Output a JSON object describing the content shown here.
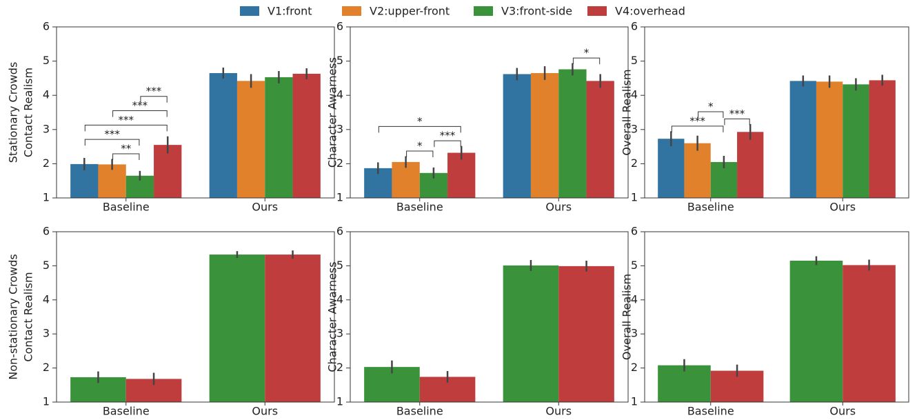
{
  "chart_data": [
    {
      "type": "bar",
      "ylabel": [
        "Stationary Crowds",
        "Contact Realism"
      ],
      "categories": [
        "Baseline",
        "Ours"
      ],
      "ylim": [
        1,
        6
      ],
      "yticks": [
        1,
        2,
        3,
        4,
        5,
        6
      ],
      "series": [
        {
          "name": "V1:front",
          "color": "#3274a1",
          "values": [
            1.99,
            4.65
          ],
          "errors": [
            0.18,
            0.16
          ]
        },
        {
          "name": "V2:upper-front",
          "color": "#e1812c",
          "values": [
            1.98,
            4.42
          ],
          "errors": [
            0.16,
            0.2
          ]
        },
        {
          "name": "V3:front-side",
          "color": "#3a923a",
          "values": [
            1.65,
            4.53
          ],
          "errors": [
            0.14,
            0.18
          ]
        },
        {
          "name": "V4:overhead",
          "color": "#c03d3e",
          "values": [
            2.55,
            4.63
          ],
          "errors": [
            0.25,
            0.16
          ]
        }
      ],
      "annotations": [
        {
          "category": 0,
          "from": 1,
          "to": 2,
          "label": "**"
        },
        {
          "category": 0,
          "from": 0,
          "to": 2,
          "label": "***"
        },
        {
          "category": 0,
          "from": 0,
          "to": 3,
          "label": "***"
        },
        {
          "category": 0,
          "from": 1,
          "to": 3,
          "label": "***"
        },
        {
          "category": 0,
          "from": 2,
          "to": 3,
          "label": "***"
        }
      ]
    },
    {
      "type": "bar",
      "ylabel": [
        "Character Awarness"
      ],
      "categories": [
        "Baseline",
        "Ours"
      ],
      "ylim": [
        1,
        6
      ],
      "yticks": [
        1,
        2,
        3,
        4,
        5,
        6
      ],
      "series": [
        {
          "name": "V1:front",
          "color": "#3274a1",
          "values": [
            1.87,
            4.62
          ],
          "errors": [
            0.17,
            0.18
          ]
        },
        {
          "name": "V2:upper-front",
          "color": "#e1812c",
          "values": [
            2.05,
            4.65
          ],
          "errors": [
            0.17,
            0.2
          ]
        },
        {
          "name": "V3:front-side",
          "color": "#3a923a",
          "values": [
            1.73,
            4.76
          ],
          "errors": [
            0.16,
            0.18
          ]
        },
        {
          "name": "V4:overhead",
          "color": "#c03d3e",
          "values": [
            2.32,
            4.42
          ],
          "errors": [
            0.2,
            0.2
          ]
        }
      ],
      "annotations": [
        {
          "category": 0,
          "from": 1,
          "to": 2,
          "label": "*"
        },
        {
          "category": 0,
          "from": 2,
          "to": 3,
          "label": "***"
        },
        {
          "category": 0,
          "from": 0,
          "to": 3,
          "label": "*"
        },
        {
          "category": 1,
          "from": 2,
          "to": 3,
          "label": "*"
        }
      ]
    },
    {
      "type": "bar",
      "ylabel": [
        "Overall Realism"
      ],
      "categories": [
        "Baseline",
        "Ours"
      ],
      "ylim": [
        1,
        6
      ],
      "yticks": [
        1,
        2,
        3,
        4,
        5,
        6
      ],
      "series": [
        {
          "name": "V1:front",
          "color": "#3274a1",
          "values": [
            2.73,
            4.42
          ],
          "errors": [
            0.22,
            0.16
          ]
        },
        {
          "name": "V2:upper-front",
          "color": "#e1812c",
          "values": [
            2.6,
            4.4
          ],
          "errors": [
            0.22,
            0.18
          ]
        },
        {
          "name": "V3:front-side",
          "color": "#3a923a",
          "values": [
            2.05,
            4.32
          ],
          "errors": [
            0.18,
            0.18
          ]
        },
        {
          "name": "V4:overhead",
          "color": "#c03d3e",
          "values": [
            2.93,
            4.44
          ],
          "errors": [
            0.23,
            0.16
          ]
        }
      ],
      "annotations": [
        {
          "category": 0,
          "from": 0,
          "to": 2,
          "label": "***"
        },
        {
          "category": 0,
          "from": 1,
          "to": 2,
          "label": "*"
        },
        {
          "category": 0,
          "from": 2,
          "to": 3,
          "label": "***"
        }
      ]
    },
    {
      "type": "bar",
      "ylabel": [
        "Non-stationary Crowds",
        "Contact Realism"
      ],
      "categories": [
        "Baseline",
        "Ours"
      ],
      "ylim": [
        1,
        6
      ],
      "yticks": [
        1,
        2,
        3,
        4,
        5,
        6
      ],
      "series": [
        {
          "name": "V3:front-side",
          "color": "#3a923a",
          "values": [
            1.73,
            5.33
          ],
          "errors": [
            0.17,
            0.1
          ]
        },
        {
          "name": "V4:overhead",
          "color": "#c03d3e",
          "values": [
            1.68,
            5.33
          ],
          "errors": [
            0.18,
            0.12
          ]
        }
      ]
    },
    {
      "type": "bar",
      "ylabel": [
        "Character Awarness"
      ],
      "categories": [
        "Baseline",
        "Ours"
      ],
      "ylim": [
        1,
        6
      ],
      "yticks": [
        1,
        2,
        3,
        4,
        5,
        6
      ],
      "series": [
        {
          "name": "V3:front-side",
          "color": "#3a923a",
          "values": [
            2.03,
            5.01
          ],
          "errors": [
            0.19,
            0.16
          ]
        },
        {
          "name": "V4:overhead",
          "color": "#c03d3e",
          "values": [
            1.74,
            4.99
          ],
          "errors": [
            0.17,
            0.16
          ]
        }
      ]
    },
    {
      "type": "bar",
      "ylabel": [
        "Overall Realism"
      ],
      "categories": [
        "Baseline",
        "Ours"
      ],
      "ylim": [
        1,
        6
      ],
      "yticks": [
        1,
        2,
        3,
        4,
        5,
        6
      ],
      "series": [
        {
          "name": "V3:front-side",
          "color": "#3a923a",
          "values": [
            2.08,
            5.15
          ],
          "errors": [
            0.18,
            0.13
          ]
        },
        {
          "name": "V4:overhead",
          "color": "#c03d3e",
          "values": [
            1.92,
            5.02
          ],
          "errors": [
            0.18,
            0.16
          ]
        }
      ]
    }
  ]
}
